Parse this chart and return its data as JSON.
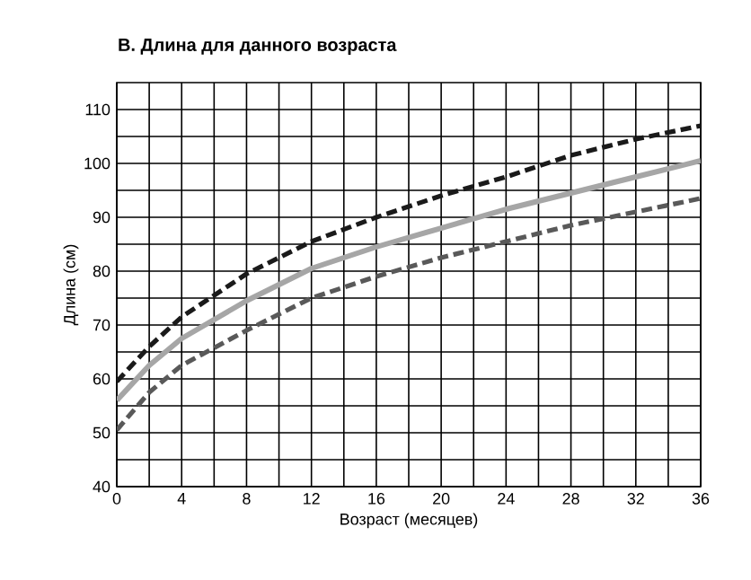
{
  "chart_data": {
    "type": "line",
    "title": "В. Длина для данного возраста",
    "xlabel": "Возраст  (месяцев)",
    "ylabel": "Длина (см)",
    "x": [
      0,
      2,
      4,
      8,
      12,
      16,
      20,
      24,
      28,
      32,
      36
    ],
    "series": [
      {
        "color": "#1a1a1a",
        "line_style": "dashed",
        "values": [
          59.5,
          66,
          71.5,
          79.5,
          85.5,
          90,
          94,
          97.5,
          101.5,
          104.5,
          107
        ]
      },
      {
        "color": "#a6a6a6",
        "line_style": "solid",
        "values": [
          56,
          62.5,
          67.5,
          74.5,
          80.5,
          84.5,
          88,
          91.5,
          94.5,
          97.5,
          100.5
        ]
      },
      {
        "color": "#595959",
        "line_style": "dashed",
        "values": [
          50.5,
          57.5,
          62.5,
          69,
          75,
          79,
          82.5,
          85.5,
          88.5,
          91,
          93.5
        ]
      }
    ],
    "xlim": [
      0,
      36
    ],
    "ylim": [
      40,
      115
    ],
    "xticks": [
      0,
      4,
      8,
      12,
      16,
      20,
      24,
      28,
      32,
      36
    ],
    "yticks": [
      40,
      50,
      60,
      70,
      80,
      90,
      100,
      110
    ],
    "grid": true,
    "marker": "none"
  }
}
